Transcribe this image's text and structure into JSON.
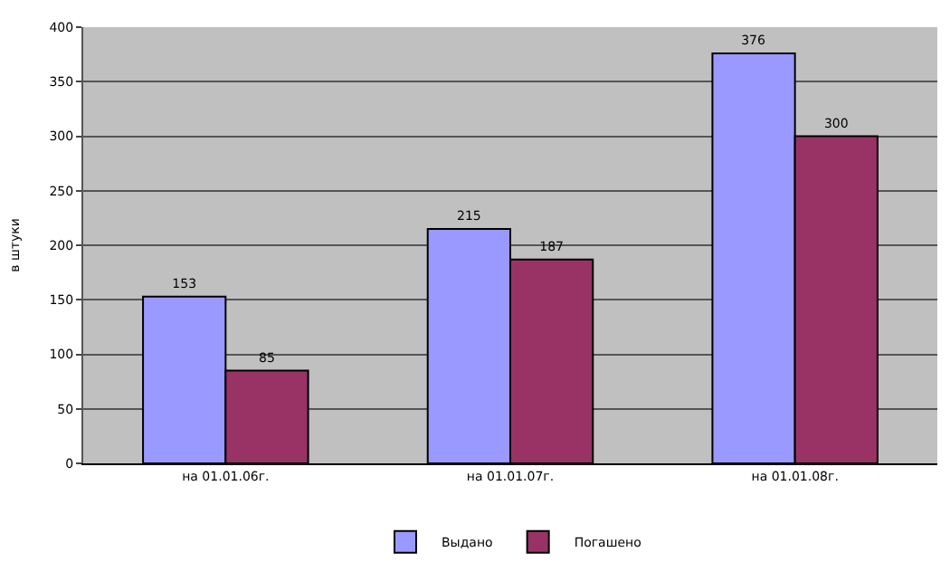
{
  "chart_data": {
    "type": "bar",
    "ylabel": "в штуки",
    "categories": [
      "на 01.01.06г.",
      "на 01.01.07г.",
      "на 01.01.08г."
    ],
    "series": [
      {
        "name": "Выдано",
        "color": "#9999ff",
        "values": [
          153,
          215,
          376
        ]
      },
      {
        "name": "Погашено",
        "color": "#993366",
        "values": [
          85,
          187,
          300
        ]
      }
    ],
    "ylim": [
      0,
      400
    ],
    "yticks": [
      0,
      50,
      100,
      150,
      200,
      250,
      300,
      350,
      400
    ],
    "grid": "y",
    "legend": "bottom",
    "data_labels": true
  }
}
